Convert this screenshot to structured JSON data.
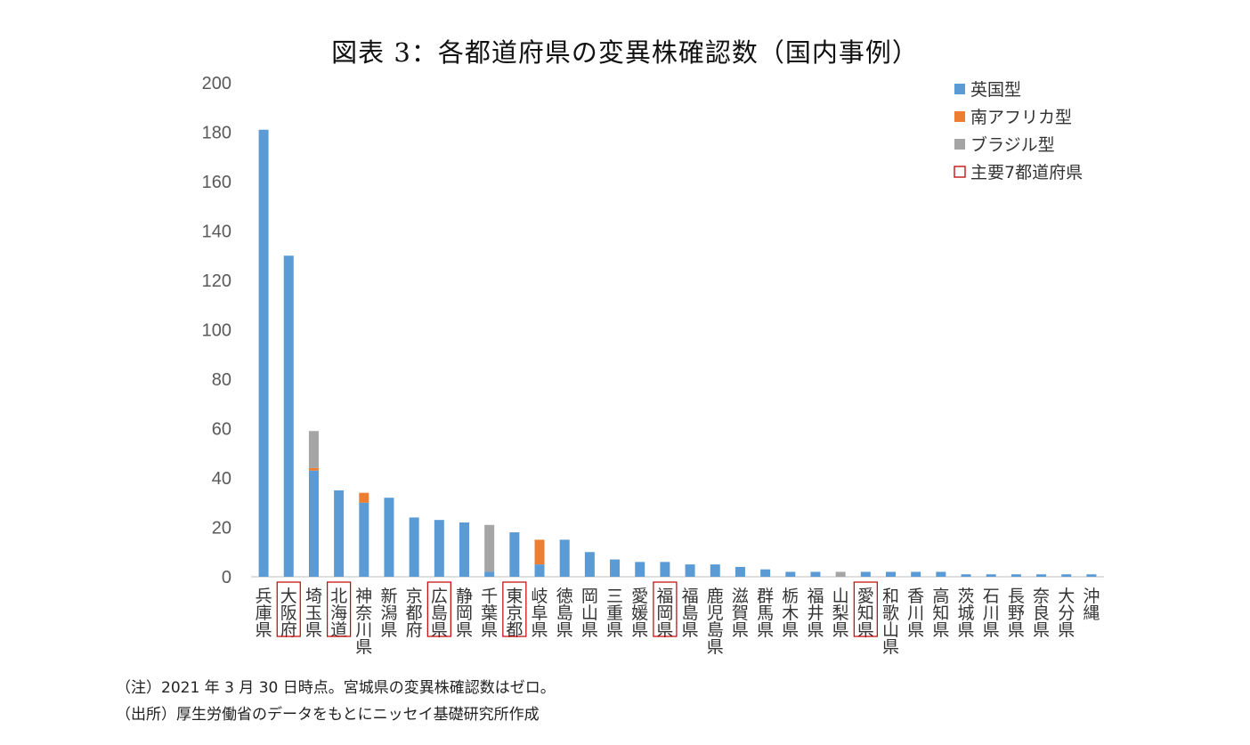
{
  "chart_data": {
    "type": "bar",
    "stacked": true,
    "title": "図表 3：各都道府県の変異株確認数（国内事例）",
    "ylim": [
      0,
      200
    ],
    "yticks": [
      0,
      20,
      40,
      60,
      80,
      100,
      120,
      140,
      160,
      180,
      200
    ],
    "grid": false,
    "legend_position": "top-right",
    "categories": [
      "兵庫県",
      "大阪府",
      "埼玉県",
      "北海道",
      "神奈川県",
      "新潟県",
      "京都府",
      "広島県",
      "静岡県",
      "千葉県",
      "東京都",
      "岐阜県",
      "徳島県",
      "岡山県",
      "三重県",
      "愛媛県",
      "福岡県",
      "福島県",
      "鹿児島県",
      "滋賀県",
      "群馬県",
      "栃木県",
      "福井県",
      "山梨県",
      "愛知県",
      "和歌山県",
      "香川県",
      "高知県",
      "茨城県",
      "石川県",
      "長野県",
      "奈良県",
      "大分県",
      "沖縄"
    ],
    "highlighted": [
      "大阪府",
      "北海道",
      "広島県",
      "東京都",
      "福岡県",
      "愛知県"
    ],
    "series": [
      {
        "name": "英国型",
        "color": "#5b9bd5",
        "values": [
          181,
          130,
          43,
          35,
          30,
          32,
          24,
          23,
          22,
          2,
          18,
          5,
          15,
          10,
          7,
          6,
          6,
          5,
          5,
          4,
          3,
          2,
          2,
          0,
          2,
          2,
          2,
          2,
          1,
          1,
          1,
          1,
          1,
          1
        ]
      },
      {
        "name": "南アフリカ型",
        "color": "#ed7d31",
        "values": [
          0,
          0,
          1,
          0,
          4,
          0,
          0,
          0,
          0,
          0,
          0,
          10,
          0,
          0,
          0,
          0,
          0,
          0,
          0,
          0,
          0,
          0,
          0,
          0,
          0,
          0,
          0,
          0,
          0,
          0,
          0,
          0,
          0,
          0
        ]
      },
      {
        "name": "ブラジル型",
        "color": "#a5a5a5",
        "values": [
          0,
          0,
          15,
          0,
          0,
          0,
          0,
          0,
          0,
          19,
          0,
          0,
          0,
          0,
          0,
          0,
          0,
          0,
          0,
          0,
          0,
          0,
          0,
          2,
          0,
          0,
          0,
          0,
          0,
          0,
          0,
          0,
          0,
          0
        ]
      }
    ],
    "legend": [
      {
        "label": "英国型",
        "color": "#5b9bd5",
        "kind": "fill"
      },
      {
        "label": "南アフリカ型",
        "color": "#ed7d31",
        "kind": "fill"
      },
      {
        "label": "ブラジル型",
        "color": "#a5a5a5",
        "kind": "fill"
      },
      {
        "label": "主要7都道府県",
        "color": "#c00000",
        "kind": "outline"
      }
    ]
  },
  "notes": [
    "（注）2021 年 3 月 30 日時点。宮城県の変異株確認数はゼロ。",
    "（出所）厚生労働省のデータをもとにニッセイ基礎研究所作成"
  ]
}
